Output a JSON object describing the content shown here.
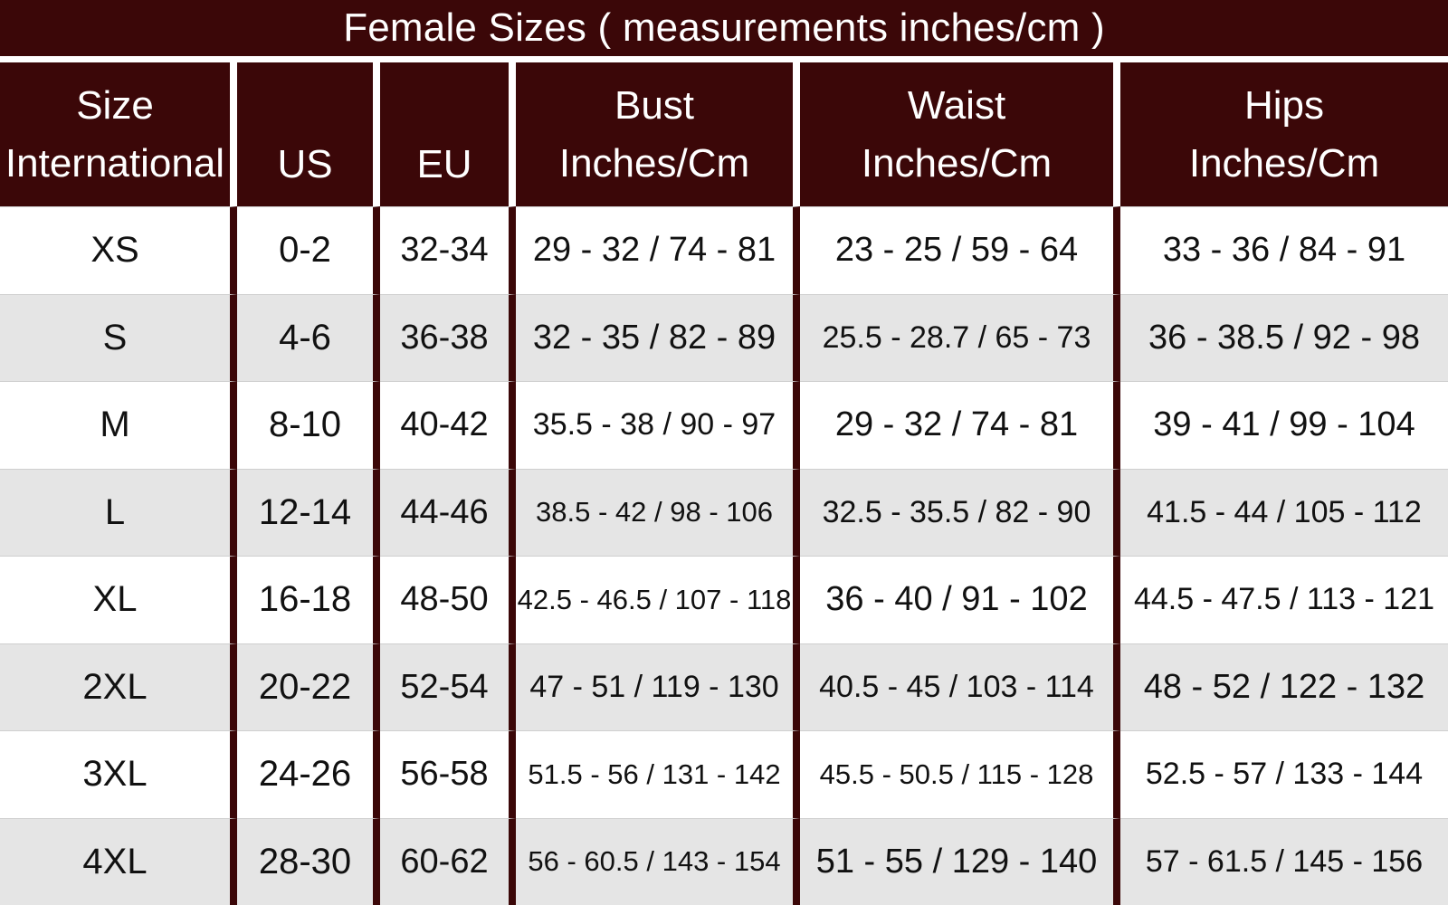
{
  "title": "Female Sizes ( measurements inches/cm )",
  "headers": [
    [
      "Size",
      "International"
    ],
    [
      "",
      "US"
    ],
    [
      "",
      "EU"
    ],
    [
      "Bust",
      "Inches/Cm"
    ],
    [
      "Waist",
      "Inches/Cm"
    ],
    [
      "Hips",
      "Inches/Cm"
    ]
  ],
  "rows": [
    [
      "XS",
      "0-2",
      "32-34",
      "29 - 32 / 74 - 81",
      "23 - 25 / 59 - 64",
      "33 - 36 / 84 - 91"
    ],
    [
      "S",
      "4-6",
      "36-38",
      "32 - 35 / 82 - 89",
      "25.5 - 28.7 / 65 - 73",
      "36 - 38.5 / 92 - 98"
    ],
    [
      "M",
      "8-10",
      "40-42",
      "35.5 - 38 / 90 - 97",
      "29 - 32 / 74 - 81",
      "39 - 41 / 99 - 104"
    ],
    [
      "L",
      "12-14",
      "44-46",
      "38.5 - 42 / 98 - 106",
      "32.5 - 35.5 / 82 - 90",
      "41.5 - 44 / 105 - 112"
    ],
    [
      "XL",
      "16-18",
      "48-50",
      "42.5 - 46.5 / 107 - 118",
      "36 - 40 / 91 - 102",
      "44.5 - 47.5 / 113 - 121"
    ],
    [
      "2XL",
      "20-22",
      "52-54",
      "47 - 51 / 119 - 130",
      "40.5 - 45 / 103 - 114",
      "48 - 52 / 122 - 132"
    ],
    [
      "3XL",
      "24-26",
      "56-58",
      "51.5 - 56 / 131 - 142",
      "45.5 - 50.5 / 115 - 128",
      "52.5 - 57 / 133 - 144"
    ],
    [
      "4XL",
      "28-30",
      "60-62",
      "56 - 60.5 / 143 - 154",
      "51 - 55 / 129 - 140",
      "57 - 61.5 / 145 - 156"
    ]
  ],
  "colors": {
    "header_bg": "#3b0708",
    "header_text": "#ffffff",
    "row_alt": "#e5e5e5",
    "row_base": "#ffffff"
  }
}
